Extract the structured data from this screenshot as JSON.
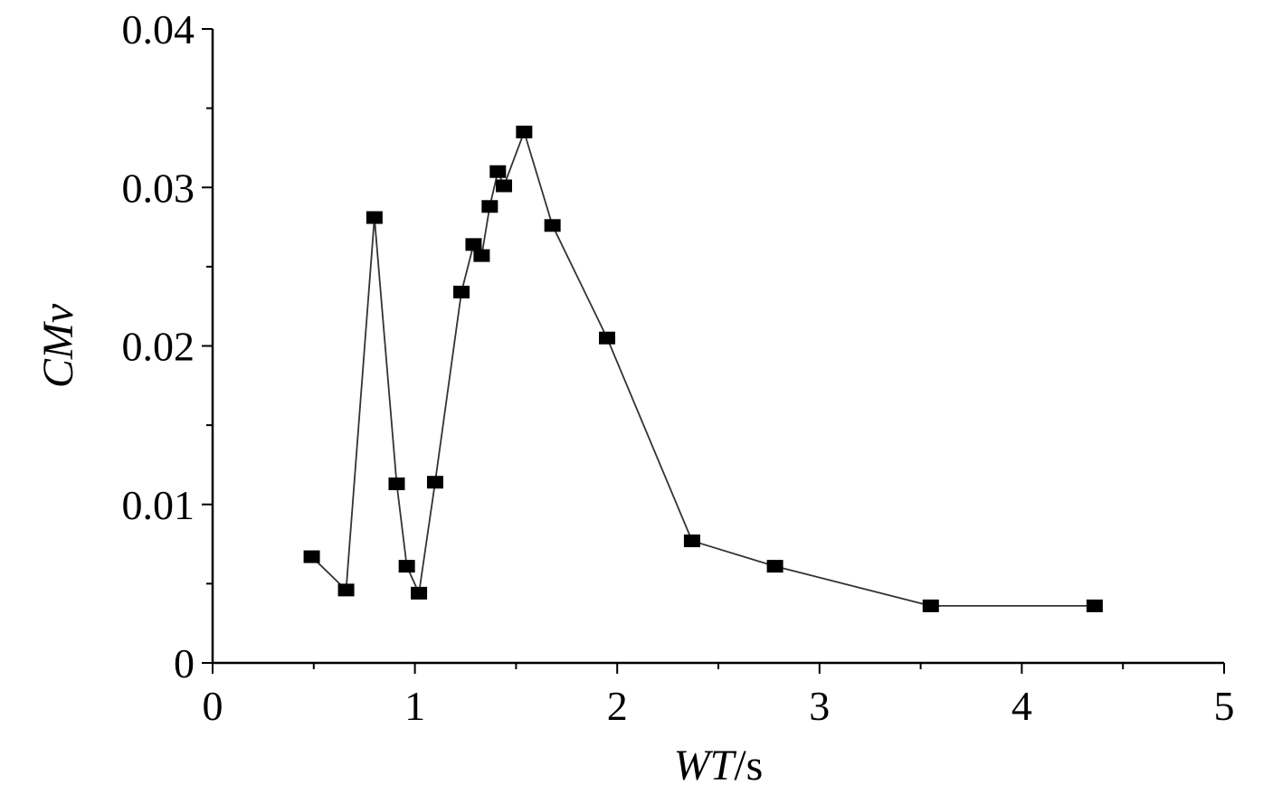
{
  "chart_data": {
    "type": "line",
    "title": "",
    "xlabel": {
      "var": "WT",
      "unit": "/s"
    },
    "ylabel": "CMv",
    "xlim": [
      0,
      5
    ],
    "ylim": [
      0,
      0.04
    ],
    "x_ticks": [
      "0",
      "1",
      "2",
      "3",
      "4",
      "5"
    ],
    "y_ticks": [
      "0",
      "0.01",
      "0.02",
      "0.03",
      "0.04"
    ],
    "marker": "square",
    "series": [
      {
        "name": "CMv",
        "x": [
          0.49,
          0.66,
          0.8,
          0.91,
          0.96,
          1.02,
          1.1,
          1.23,
          1.29,
          1.33,
          1.37,
          1.41,
          1.44,
          1.54,
          1.68,
          1.95,
          2.37,
          2.78,
          3.55,
          4.36
        ],
        "y": [
          0.0067,
          0.0046,
          0.0281,
          0.0113,
          0.0061,
          0.0044,
          0.0114,
          0.0234,
          0.0264,
          0.0257,
          0.0288,
          0.031,
          0.0301,
          0.0335,
          0.0276,
          0.0205,
          0.0077,
          0.0061,
          0.0036,
          0.0036
        ]
      }
    ]
  }
}
